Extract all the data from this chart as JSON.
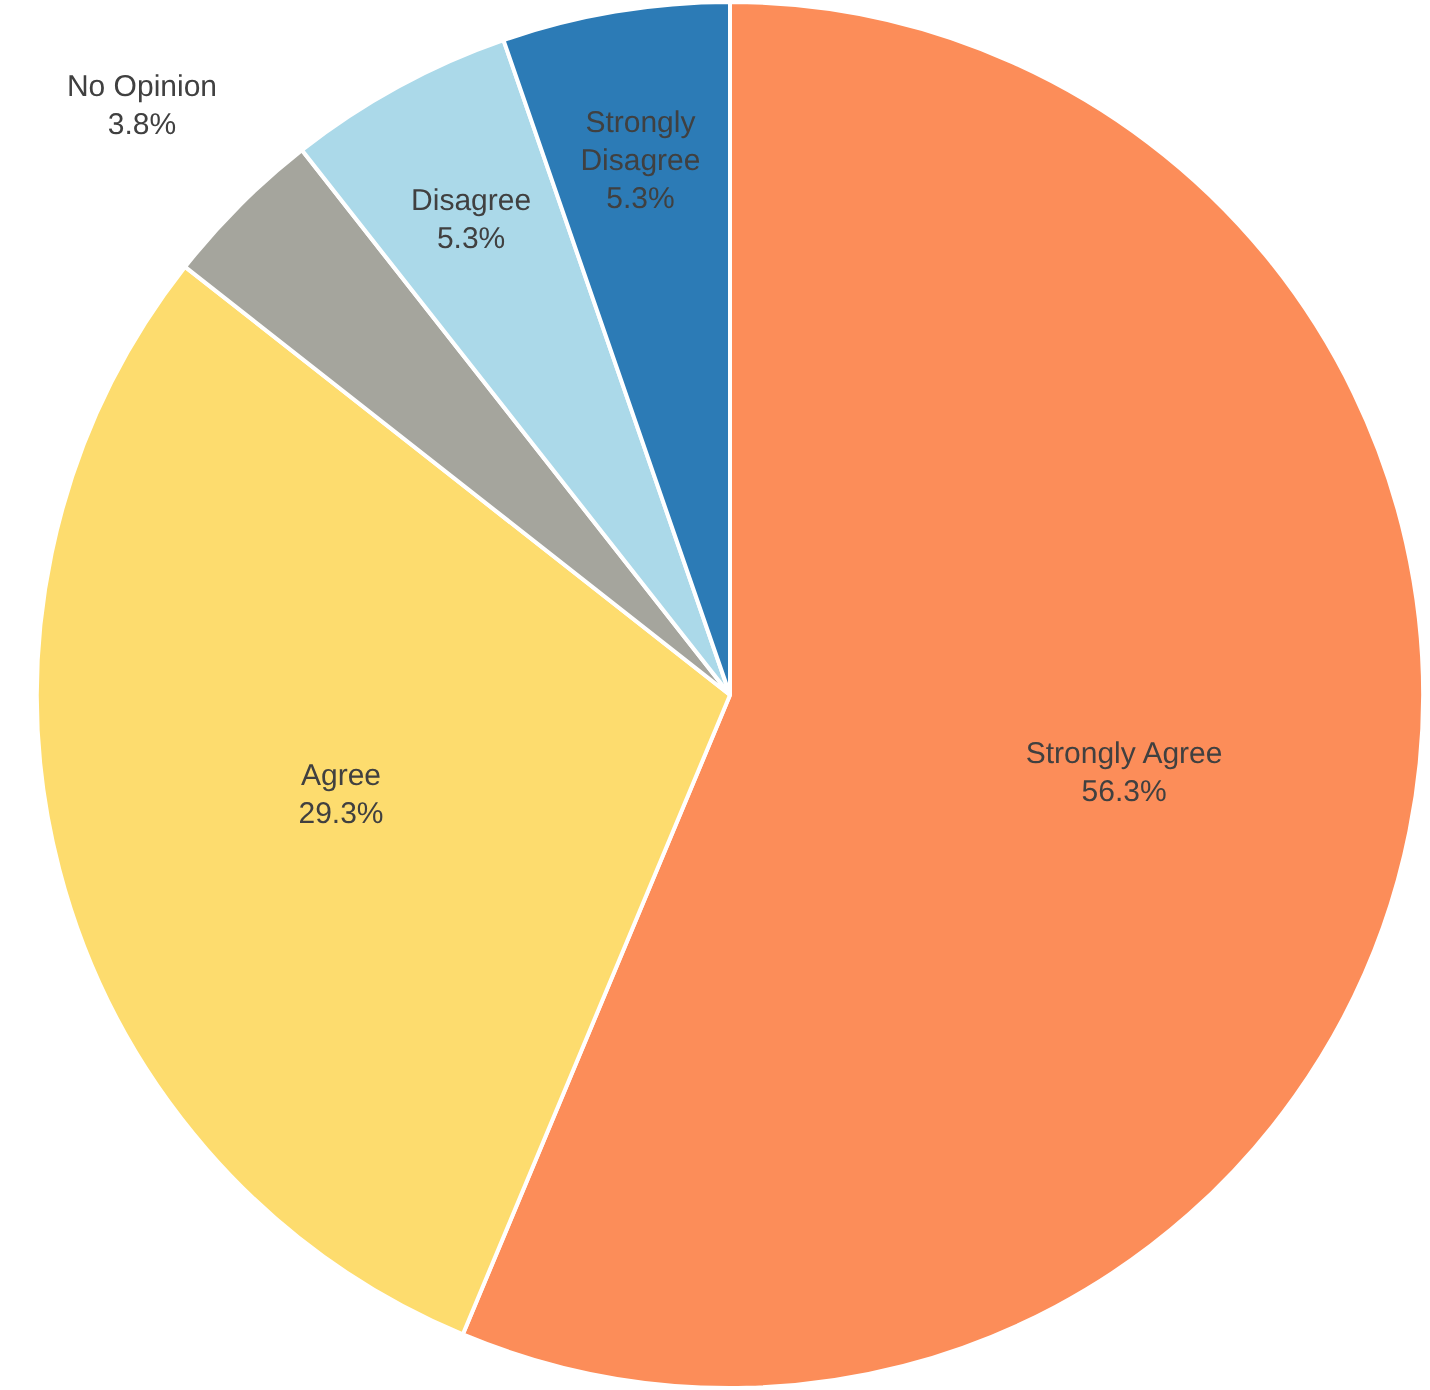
{
  "chart_data": {
    "type": "pie",
    "categories": [
      "Strongly Agree",
      "Agree",
      "No Opinion",
      "Disagree",
      "Strongly Disagree"
    ],
    "values": [
      56.3,
      29.3,
      3.8,
      5.3,
      5.3
    ],
    "colors": [
      "#fc8d59",
      "#fddc6e",
      "#a5a59d",
      "#abd9e9",
      "#2c7bb6"
    ],
    "value_labels": [
      "56.3%",
      "29.3%",
      "3.8%",
      "5.3%",
      "5.3%"
    ],
    "legend": false
  }
}
